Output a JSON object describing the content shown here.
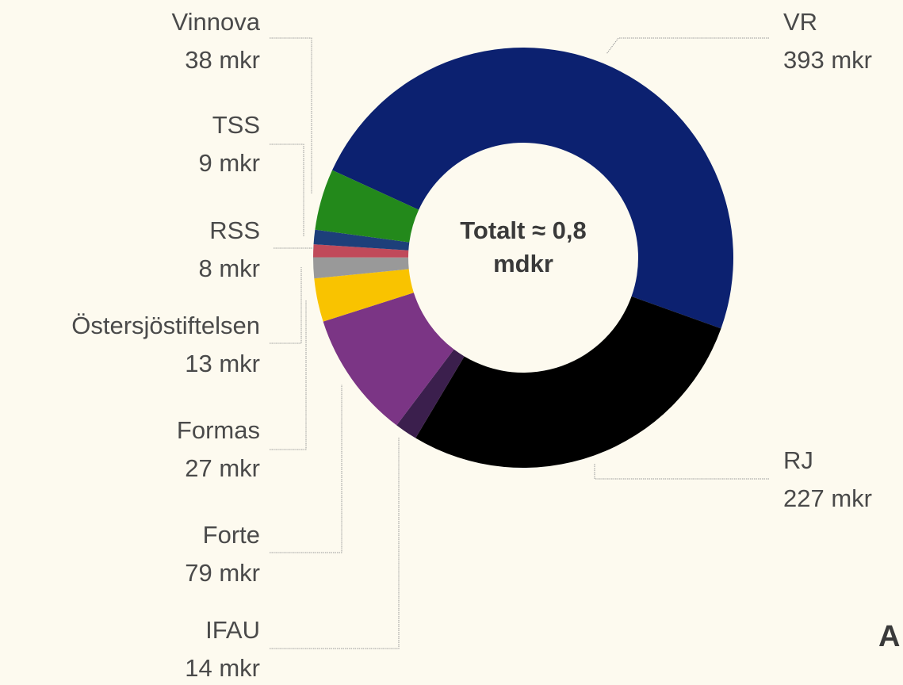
{
  "chart_data": {
    "type": "donut",
    "center_label": "Totalt ≈ 0,8 mdkr",
    "categories": [
      "VR",
      "RJ",
      "IFAU",
      "Forte",
      "Formas",
      "Östersjöstiftelsen",
      "RSS",
      "TSS",
      "Vinnova"
    ],
    "values": [
      393,
      227,
      14,
      79,
      27,
      13,
      8,
      9,
      38
    ],
    "value_labels": [
      "393 mkr",
      "227 mkr",
      "14 mkr",
      "79 mkr",
      "27 mkr",
      "13 mkr",
      "8 mkr",
      "9 mkr",
      "38 mkr"
    ],
    "colors": [
      "#0c2170",
      "#000000",
      "#3b1f4d",
      "#7b3585",
      "#f9c300",
      "#999999",
      "#c04a5a",
      "#1d3f7a",
      "#23891b"
    ],
    "annotation": "A"
  }
}
